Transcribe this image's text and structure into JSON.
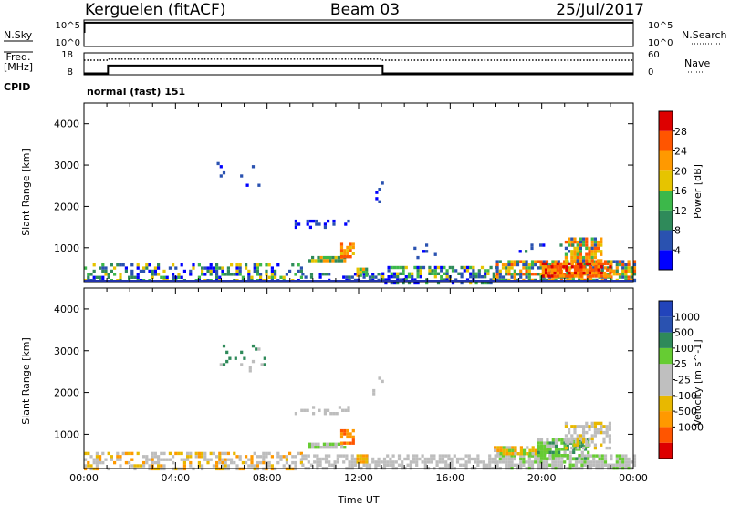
{
  "header": {
    "station": "Kerguelen (fitACF)",
    "beam": "Beam 03",
    "date": "25/Jul/2017"
  },
  "summary": {
    "nsky_label": "N.Sky",
    "nsearch_label": "N.Search",
    "log_ticks_left": [
      "10^5",
      "10^0"
    ],
    "log_ticks_right": [
      "10^5",
      "10^0"
    ],
    "freq_label_top": "Freq.",
    "freq_label_unit": "[MHz]",
    "freq_ticks": [
      "18",
      "8"
    ],
    "nave_label": "Nave",
    "nave_ticks": [
      "60",
      "0"
    ],
    "cpid_label": "CPID",
    "cpid_text": "normal (fast) 151"
  },
  "colors": {
    "power": [
      "#0000ff",
      "#2a52b0",
      "#2f8a5a",
      "#3cb84a",
      "#e6c400",
      "#ff9900",
      "#ff5500",
      "#dd0000"
    ],
    "velocity": [
      "#dd0000",
      "#ff5500",
      "#ff9900",
      "#e8b800",
      "#bfbfbf",
      "#bfbfbf",
      "#66cc33",
      "#2f8a5a",
      "#2a52b0",
      "#2244bb"
    ],
    "ground": "#bdbdbd"
  },
  "chart_data": [
    {
      "type": "line",
      "name": "summary-nsky-nsearch",
      "x": [
        "00:00",
        "24:00"
      ],
      "series": [
        {
          "name": "N.Sky",
          "x": [
            0,
            0.02,
            0.02,
            24
          ],
          "y": [
            0.55,
            0.55,
            0.9,
            0.9
          ],
          "style": "solid"
        }
      ]
    },
    {
      "type": "line",
      "name": "summary-freq-nave",
      "series": [
        {
          "name": "Freq",
          "x": [
            0,
            1.05,
            1.05,
            13.05,
            13.05,
            24
          ],
          "y": [
            8.6,
            8.6,
            12.2,
            12.2,
            8.6,
            8.6
          ],
          "style": "solid"
        },
        {
          "name": "Nave",
          "x": [
            0,
            1.05,
            1.05,
            13.05,
            13.05,
            24
          ],
          "y": [
            40,
            40,
            43,
            43,
            40,
            40
          ],
          "style": "dotted"
        }
      ],
      "ylim": [
        8,
        18
      ]
    },
    {
      "type": "heatmap",
      "name": "power-panel",
      "xlabel": "",
      "ylabel": "Slant Range [km]",
      "xlim": [
        0,
        24
      ],
      "ylim": [
        180,
        4500
      ],
      "yticks": [
        1000,
        2000,
        3000,
        4000
      ],
      "colorbar": {
        "label": "Power [dB]",
        "ticks": [
          "4",
          "8",
          "12",
          "16",
          "20",
          "24",
          "28"
        ],
        "range": [
          0,
          32
        ]
      },
      "regions": [
        {
          "x0": 0.0,
          "x1": 9.5,
          "r0": 180,
          "r1": 620,
          "levels": [
            0,
            1,
            2,
            3,
            4
          ],
          "density": 0.45
        },
        {
          "x0": 9.5,
          "x1": 13.0,
          "r0": 180,
          "r1": 400,
          "levels": [
            0,
            1,
            2
          ],
          "density": 0.35
        },
        {
          "x0": 13.0,
          "x1": 18.0,
          "r0": 180,
          "r1": 560,
          "levels": [
            0,
            1,
            2,
            3,
            4
          ],
          "density": 0.55
        },
        {
          "x0": 18.0,
          "x1": 24.0,
          "r0": 180,
          "r1": 700,
          "levels": [
            1,
            2,
            3,
            4,
            5,
            6
          ],
          "density": 0.75
        },
        {
          "x0": 20.0,
          "x1": 23.0,
          "r0": 300,
          "r1": 650,
          "levels": [
            5,
            6,
            7
          ],
          "density": 0.85
        },
        {
          "x0": 21.0,
          "x1": 22.6,
          "r0": 700,
          "r1": 1250,
          "levels": [
            1,
            3,
            4,
            5,
            6
          ],
          "density": 0.75
        },
        {
          "x0": 9.8,
          "x1": 11.4,
          "r0": 660,
          "r1": 800,
          "levels": [
            2,
            3,
            4,
            5
          ],
          "density": 0.9
        },
        {
          "x0": 11.2,
          "x1": 11.8,
          "r0": 780,
          "r1": 1120,
          "levels": [
            4,
            5,
            6
          ],
          "density": 0.9
        },
        {
          "x0": 11.9,
          "x1": 12.4,
          "r0": 330,
          "r1": 520,
          "levels": [
            2,
            3,
            4,
            5
          ],
          "density": 0.9
        },
        {
          "x0": 9.2,
          "x1": 11.5,
          "r0": 1520,
          "r1": 1680,
          "levels": [
            0,
            1
          ],
          "density": 0.35
        },
        {
          "x0": 5.8,
          "x1": 7.9,
          "r0": 2550,
          "r1": 3150,
          "levels": [
            0,
            1
          ],
          "density": 0.08
        },
        {
          "x0": 12.6,
          "x1": 13.0,
          "r0": 1900,
          "r1": 2600,
          "levels": [
            0,
            1
          ],
          "density": 0.15
        },
        {
          "x0": 14.4,
          "x1": 15.3,
          "r0": 750,
          "r1": 1100,
          "levels": [
            0,
            1
          ],
          "density": 0.25
        },
        {
          "x0": 19.0,
          "x1": 21.5,
          "r0": 900,
          "r1": 1100,
          "levels": [
            0,
            1,
            2
          ],
          "density": 0.2
        }
      ]
    },
    {
      "type": "heatmap",
      "name": "velocity-panel",
      "xlabel": "Time UT",
      "ylabel": "Slant Range [km]",
      "xlim": [
        0,
        24
      ],
      "ylim": [
        180,
        4500
      ],
      "xticks": [
        "00:00",
        "04:00",
        "08:00",
        "12:00",
        "16:00",
        "20:00",
        "00:00"
      ],
      "yticks": [
        1000,
        2000,
        3000,
        4000
      ],
      "colorbar": {
        "label": "Velocity [m s^-1]",
        "ticks": [
          "1000",
          "500",
          "100",
          "25",
          "-25",
          "-100",
          "-500",
          "-1000"
        ]
      },
      "regions": [
        {
          "x0": 0.0,
          "x1": 9.5,
          "r0": 180,
          "r1": 580,
          "levels": [
            10,
            10,
            10,
            3,
            2
          ],
          "density": 0.5
        },
        {
          "x0": 9.5,
          "x1": 18.0,
          "r0": 180,
          "r1": 520,
          "levels": [
            10,
            10,
            10,
            4
          ],
          "density": 0.55
        },
        {
          "x0": 18.0,
          "x1": 24.0,
          "r0": 180,
          "r1": 520,
          "levels": [
            10,
            10,
            10,
            10,
            6
          ],
          "density": 0.8
        },
        {
          "x0": 17.9,
          "x1": 20.2,
          "r0": 520,
          "r1": 720,
          "levels": [
            2,
            3,
            6,
            10
          ],
          "density": 0.75
        },
        {
          "x0": 19.8,
          "x1": 22.0,
          "r0": 450,
          "r1": 900,
          "levels": [
            6,
            6,
            7,
            10
          ],
          "density": 0.75
        },
        {
          "x0": 21.0,
          "x1": 23.0,
          "r0": 700,
          "r1": 1300,
          "levels": [
            10,
            10,
            4,
            3
          ],
          "density": 0.55
        },
        {
          "x0": 9.8,
          "x1": 11.4,
          "r0": 680,
          "r1": 800,
          "levels": [
            10,
            10,
            6
          ],
          "density": 0.9
        },
        {
          "x0": 11.2,
          "x1": 11.8,
          "r0": 780,
          "r1": 1120,
          "levels": [
            2,
            1
          ],
          "density": 0.9
        },
        {
          "x0": 11.9,
          "x1": 12.4,
          "r0": 330,
          "r1": 520,
          "levels": [
            2,
            3
          ],
          "density": 0.9
        },
        {
          "x0": 9.2,
          "x1": 11.5,
          "r0": 1520,
          "r1": 1680,
          "levels": [
            10
          ],
          "density": 0.3
        },
        {
          "x0": 5.8,
          "x1": 7.9,
          "r0": 2550,
          "r1": 3150,
          "levels": [
            10,
            7
          ],
          "density": 0.07
        },
        {
          "x0": 12.6,
          "x1": 13.0,
          "r0": 1900,
          "r1": 2600,
          "levels": [
            10
          ],
          "density": 0.12
        }
      ]
    }
  ]
}
